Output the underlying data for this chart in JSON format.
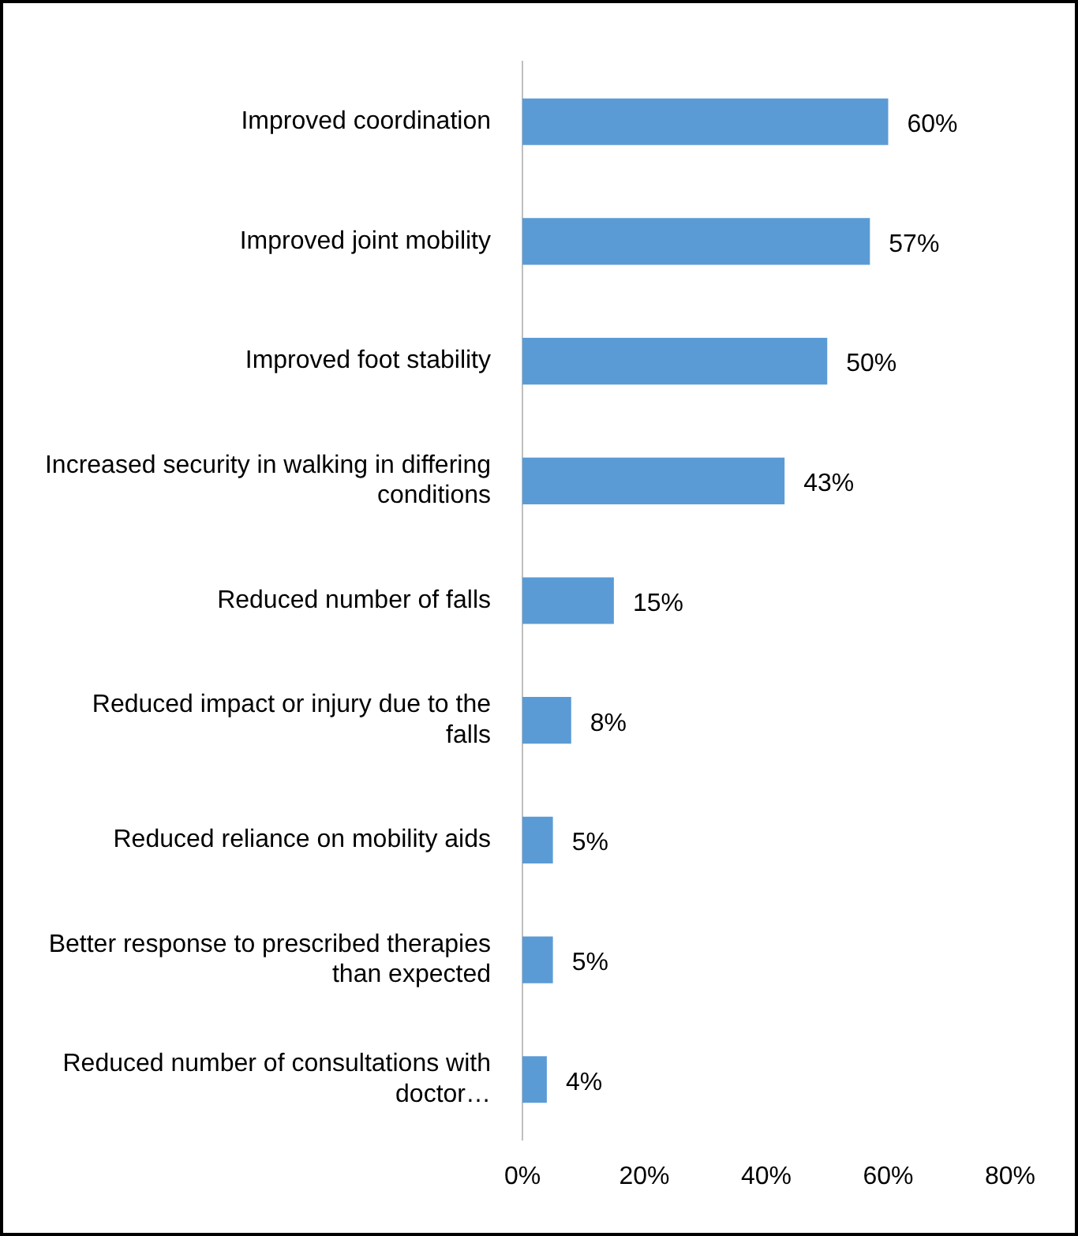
{
  "chart_data": {
    "type": "bar",
    "orientation": "horizontal",
    "categories": [
      "Improved coordination",
      "Improved joint mobility",
      "Improved foot stability",
      "Increased security in walking in differing conditions",
      "Reduced number of falls",
      "Reduced impact or injury due to the falls",
      "Reduced reliance on mobility aids",
      "Better response to prescribed therapies than expected",
      "Reduced number of consultations with doctor…"
    ],
    "values": [
      60,
      57,
      50,
      43,
      15,
      8,
      5,
      5,
      4
    ],
    "value_labels": [
      "60%",
      "57%",
      "50%",
      "43%",
      "15%",
      "8%",
      "5%",
      "5%",
      "4%"
    ],
    "color": "#5b9bd5",
    "xlim": [
      0,
      80
    ],
    "xticks": [
      {
        "value": 0,
        "label": "0%"
      },
      {
        "value": 20,
        "label": "20%"
      },
      {
        "value": 40,
        "label": "40%"
      },
      {
        "value": 60,
        "label": "60%"
      },
      {
        "value": 80,
        "label": "80%"
      }
    ],
    "grid": false,
    "legend": false
  }
}
